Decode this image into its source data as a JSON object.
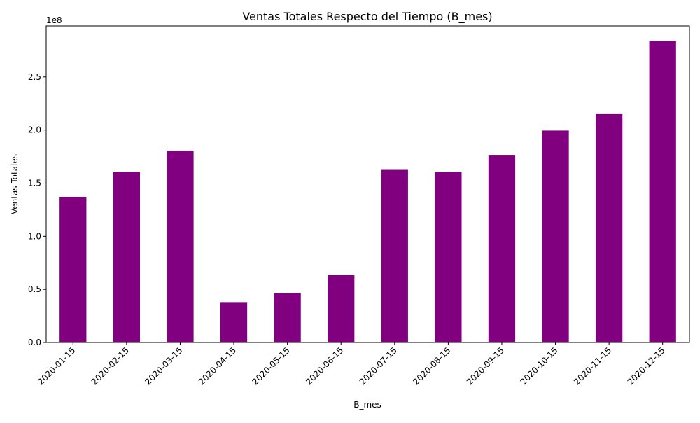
{
  "chart_data": {
    "type": "bar",
    "title": "Ventas Totales Respecto del Tiempo (B_mes)",
    "xlabel": "B_mes",
    "ylabel": "Ventas Totales",
    "y_offset_label": "1e8",
    "categories": [
      "2020-01-15",
      "2020-02-15",
      "2020-03-15",
      "2020-04-15",
      "2020-05-15",
      "2020-06-15",
      "2020-07-15",
      "2020-08-15",
      "2020-09-15",
      "2020-10-15",
      "2020-11-15",
      "2020-12-15"
    ],
    "values": [
      137000000,
      160500000,
      180500000,
      38000000,
      46500000,
      63500000,
      162500000,
      160500000,
      176000000,
      199500000,
      215000000,
      284000000
    ],
    "ylim": [
      0,
      298000000
    ],
    "yticks": [
      0,
      50000000,
      100000000,
      150000000,
      200000000,
      250000000
    ],
    "ytick_labels": [
      "0.0",
      "0.5",
      "1.0",
      "1.5",
      "2.0",
      "2.5"
    ],
    "bar_color": "#800080",
    "grid": false,
    "legend": "none"
  }
}
